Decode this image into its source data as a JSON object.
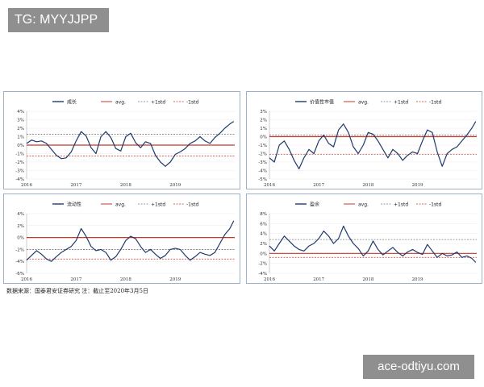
{
  "watermarks": {
    "top_left": "TG: MYYJJPP",
    "bottom_right": "ace-odtiyu.com"
  },
  "source_note": "数据来源：国泰君安证券研究   注：截止至2020年3月5日",
  "chart_data": [
    {
      "type": "line",
      "series_label": "成长",
      "legend": [
        "成长",
        "avg.",
        "+1std",
        "-1std"
      ],
      "ylim": [
        -4,
        4
      ],
      "yticks": [
        "4%",
        "3%",
        "2%",
        "1%",
        "0%",
        "-1%",
        "-2%",
        "-3%",
        "-4%"
      ],
      "xticks": [
        "2016",
        "2017",
        "2018",
        "2019"
      ],
      "x_range": [
        2016.0,
        2020.2
      ],
      "avg": 0.0,
      "plus_std": 1.3,
      "minus_std": -1.3,
      "x": [
        2016.0,
        2016.1,
        2016.2,
        2016.3,
        2016.4,
        2016.5,
        2016.6,
        2016.7,
        2016.8,
        2016.9,
        2017.0,
        2017.1,
        2017.2,
        2017.3,
        2017.4,
        2017.5,
        2017.6,
        2017.7,
        2017.8,
        2017.9,
        2018.0,
        2018.1,
        2018.2,
        2018.3,
        2018.4,
        2018.5,
        2018.6,
        2018.7,
        2018.8,
        2018.9,
        2019.0,
        2019.1,
        2019.2,
        2019.3,
        2019.4,
        2019.5,
        2019.6,
        2019.7,
        2019.8,
        2019.9,
        2020.0,
        2020.1,
        2020.18
      ],
      "y": [
        0.2,
        0.6,
        0.4,
        0.5,
        0.2,
        -0.5,
        -1.2,
        -1.6,
        -1.5,
        -0.8,
        0.5,
        1.6,
        1.1,
        -0.3,
        -1.0,
        1.0,
        1.6,
        0.9,
        -0.4,
        -0.7,
        1.0,
        1.4,
        0.3,
        -0.3,
        0.4,
        0.2,
        -1.2,
        -2.0,
        -2.5,
        -2.0,
        -1.1,
        -0.8,
        -0.4,
        0.2,
        0.5,
        1.0,
        0.5,
        0.2,
        0.9,
        1.4,
        2.0,
        2.5,
        2.8
      ]
    },
    {
      "type": "line",
      "series_label": "价值性市值",
      "legend": [
        "价值性市值",
        "avg.",
        "+1std",
        "-1std"
      ],
      "ylim": [
        -5,
        3
      ],
      "yticks": [
        "3%",
        "2%",
        "1%",
        "0%",
        "-1%",
        "-2%",
        "-3%",
        "-4%",
        "-5%"
      ],
      "xticks": [
        "2016",
        "2017",
        "2018",
        "2019"
      ],
      "x_range": [
        2016.0,
        2020.2
      ],
      "avg": 0.0,
      "plus_std": 0.2,
      "minus_std": -2.1,
      "x": [
        2016.0,
        2016.1,
        2016.2,
        2016.3,
        2016.4,
        2016.5,
        2016.6,
        2016.7,
        2016.8,
        2016.9,
        2017.0,
        2017.1,
        2017.2,
        2017.3,
        2017.4,
        2017.5,
        2017.6,
        2017.7,
        2017.8,
        2017.9,
        2018.0,
        2018.1,
        2018.2,
        2018.3,
        2018.4,
        2018.5,
        2018.6,
        2018.7,
        2018.8,
        2018.9,
        2019.0,
        2019.1,
        2019.2,
        2019.3,
        2019.4,
        2019.5,
        2019.6,
        2019.7,
        2019.8,
        2019.9,
        2020.0,
        2020.1,
        2020.18
      ],
      "y": [
        -2.5,
        -3.0,
        -1.0,
        -0.5,
        -1.5,
        -2.8,
        -3.8,
        -2.5,
        -1.5,
        -2.0,
        -0.5,
        0.2,
        -0.8,
        -1.2,
        0.8,
        1.5,
        0.5,
        -1.2,
        -2.0,
        -1.0,
        0.5,
        0.3,
        -0.5,
        -1.5,
        -2.5,
        -1.5,
        -2.0,
        -2.8,
        -2.2,
        -1.8,
        -2.0,
        -0.5,
        0.8,
        0.5,
        -1.8,
        -3.5,
        -2.0,
        -1.5,
        -1.2,
        -0.5,
        0.2,
        1.0,
        1.8
      ]
    },
    {
      "type": "line",
      "series_label": "流动性",
      "legend": [
        "流动性",
        "avg.",
        "+1std",
        "-1std"
      ],
      "ylim": [
        -6,
        4
      ],
      "yticks": [
        "4%",
        "2%",
        "0%",
        "-2%",
        "-4%",
        "-6%"
      ],
      "xticks": [
        "2016",
        "2017",
        "2018",
        "2019"
      ],
      "x_range": [
        2016.0,
        2020.2
      ],
      "avg": 0.0,
      "plus_std": -2.0,
      "minus_std": -3.6,
      "x": [
        2016.0,
        2016.1,
        2016.2,
        2016.3,
        2016.4,
        2016.5,
        2016.6,
        2016.7,
        2016.8,
        2016.9,
        2017.0,
        2017.1,
        2017.2,
        2017.3,
        2017.4,
        2017.5,
        2017.6,
        2017.7,
        2017.8,
        2017.9,
        2018.0,
        2018.1,
        2018.2,
        2018.3,
        2018.4,
        2018.5,
        2018.6,
        2018.7,
        2018.8,
        2018.9,
        2019.0,
        2019.1,
        2019.2,
        2019.3,
        2019.4,
        2019.5,
        2019.6,
        2019.7,
        2019.8,
        2019.9,
        2020.0,
        2020.1,
        2020.18
      ],
      "y": [
        -3.8,
        -3.0,
        -2.2,
        -2.8,
        -3.6,
        -4.0,
        -3.2,
        -2.5,
        -2.0,
        -1.5,
        -0.5,
        1.5,
        0.2,
        -1.5,
        -2.2,
        -2.0,
        -2.5,
        -3.8,
        -3.2,
        -2.0,
        -0.5,
        0.2,
        -0.2,
        -1.5,
        -2.5,
        -2.0,
        -2.8,
        -3.5,
        -3.0,
        -2.0,
        -1.8,
        -2.0,
        -3.0,
        -3.8,
        -3.2,
        -2.5,
        -2.8,
        -3.0,
        -2.5,
        -1.0,
        0.5,
        1.5,
        2.8
      ]
    },
    {
      "type": "line",
      "series_label": "盈余",
      "legend": [
        "盈余",
        "avg.",
        "+1std",
        "-1std"
      ],
      "ylim": [
        -4,
        8
      ],
      "yticks": [
        "8%",
        "6%",
        "4%",
        "2%",
        "0%",
        "-2%",
        "-4%"
      ],
      "xticks": [
        "2016",
        "2017",
        "2018",
        "2019"
      ],
      "x_range": [
        2016.0,
        2020.2
      ],
      "avg": 0.0,
      "plus_std": 2.8,
      "minus_std": -0.8,
      "x": [
        2016.0,
        2016.1,
        2016.2,
        2016.3,
        2016.4,
        2016.5,
        2016.6,
        2016.7,
        2016.8,
        2016.9,
        2017.0,
        2017.1,
        2017.2,
        2017.3,
        2017.4,
        2017.5,
        2017.6,
        2017.7,
        2017.8,
        2017.9,
        2018.0,
        2018.1,
        2018.2,
        2018.3,
        2018.4,
        2018.5,
        2018.6,
        2018.7,
        2018.8,
        2018.9,
        2019.0,
        2019.1,
        2019.2,
        2019.3,
        2019.4,
        2019.5,
        2019.6,
        2019.7,
        2019.8,
        2019.9,
        2020.0,
        2020.1,
        2020.18
      ],
      "y": [
        1.5,
        0.5,
        2.0,
        3.5,
        2.5,
        1.5,
        0.8,
        0.5,
        1.5,
        2.0,
        3.0,
        4.5,
        3.5,
        2.0,
        3.0,
        5.5,
        3.5,
        2.0,
        1.0,
        -0.5,
        0.5,
        2.5,
        0.8,
        -0.3,
        0.5,
        1.2,
        0.2,
        -0.5,
        0.3,
        0.8,
        0.2,
        -0.2,
        1.8,
        0.5,
        -0.8,
        0.0,
        -0.5,
        -0.3,
        0.3,
        -0.8,
        -0.5,
        -1.0,
        -1.8
      ]
    }
  ]
}
